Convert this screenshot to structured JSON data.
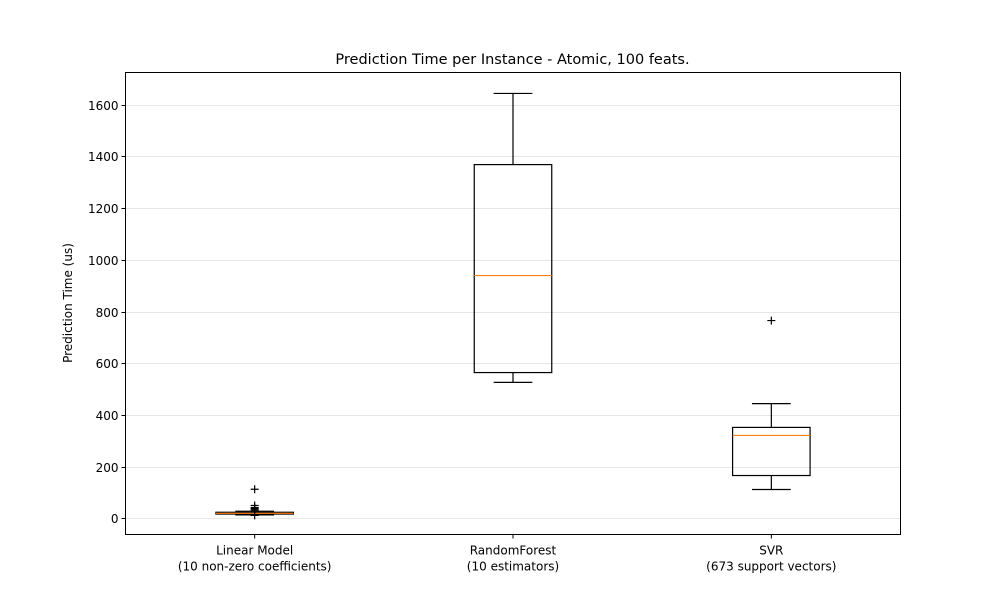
{
  "chart_data": {
    "type": "box",
    "title": "Prediction Time per Instance - Atomic, 100 feats.",
    "xlabel": "",
    "ylabel": "Prediction Time (us)",
    "ylim": [
      -62,
      1724
    ],
    "yticks": [
      0,
      200,
      400,
      600,
      800,
      1000,
      1200,
      1400,
      1600
    ],
    "grid": "horizontal",
    "colors": {
      "box": "#000000",
      "median": "#ff7f0e",
      "grid": "#e6e6e6"
    },
    "categories": [
      {
        "line1": "Linear Model",
        "line2": "(10 non-zero coefficients)"
      },
      {
        "line1": "RandomForest",
        "line2": "(10 estimators)"
      },
      {
        "line1": "SVR",
        "line2": "(673 support vectors)"
      }
    ],
    "boxes": [
      {
        "whisker_low": 14,
        "q1": 17,
        "median": 20,
        "q3": 24,
        "whisker_high": 28,
        "outliers": [
          12,
          30,
          34,
          38,
          42,
          50,
          113
        ]
      },
      {
        "whisker_low": 526,
        "q1": 564,
        "median": 939,
        "q3": 1368,
        "whisker_high": 1643,
        "outliers": []
      },
      {
        "whisker_low": 112,
        "q1": 166,
        "median": 321,
        "q3": 352,
        "whisker_high": 444,
        "outliers": [
          765
        ]
      }
    ]
  }
}
